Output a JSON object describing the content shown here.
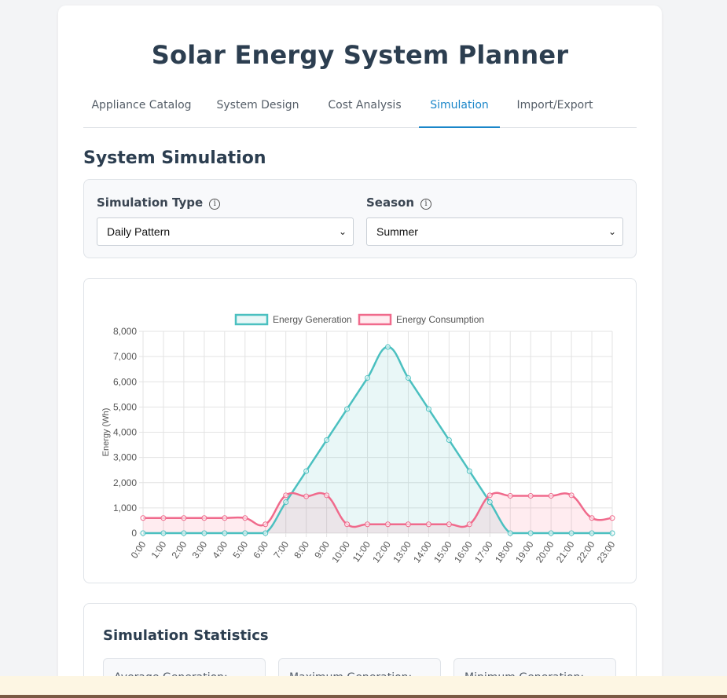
{
  "app": {
    "title": "Solar Energy System Planner"
  },
  "tabs": [
    {
      "label": "Appliance Catalog"
    },
    {
      "label": "System Design"
    },
    {
      "label": "Cost Analysis"
    },
    {
      "label": "Simulation",
      "active": true
    },
    {
      "label": "Import/Export"
    }
  ],
  "section": {
    "title": "System Simulation"
  },
  "controls": {
    "simulation_type": {
      "label": "Simulation Type",
      "value": "Daily Pattern",
      "info_icon": "info-circle-icon"
    },
    "season": {
      "label": "Season",
      "value": "Summer",
      "info_icon": "info-circle-icon"
    }
  },
  "chart_data": {
    "type": "line",
    "title": "",
    "xlabel": "",
    "ylabel": "Energy (Wh)",
    "ylim": [
      0,
      8000
    ],
    "yticks": [
      0,
      1000,
      2000,
      3000,
      4000,
      5000,
      6000,
      7000,
      8000
    ],
    "ytick_labels": [
      "0",
      "1,000",
      "2,000",
      "3,000",
      "4,000",
      "5,000",
      "6,000",
      "7,000",
      "8,000"
    ],
    "legend_position": "top",
    "grid": true,
    "categories": [
      "0:00",
      "1:00",
      "2:00",
      "3:00",
      "4:00",
      "5:00",
      "6:00",
      "7:00",
      "8:00",
      "9:00",
      "10:00",
      "11:00",
      "12:00",
      "13:00",
      "14:00",
      "15:00",
      "16:00",
      "17:00",
      "18:00",
      "19:00",
      "20:00",
      "21:00",
      "22:00",
      "23:00"
    ],
    "series": [
      {
        "name": "Energy Generation",
        "color": "#4bc0c0",
        "fill": "rgba(75,192,192,0.12)",
        "values": [
          0,
          0,
          0,
          0,
          0,
          0,
          0,
          1230,
          2460,
          3690,
          4920,
          6150,
          7380,
          6150,
          4920,
          3690,
          2460,
          1230,
          0,
          0,
          0,
          0,
          0,
          0
        ]
      },
      {
        "name": "Energy Consumption",
        "color": "#f06a8c",
        "fill": "rgba(255,99,132,0.12)",
        "values": [
          600,
          600,
          600,
          600,
          600,
          600,
          350,
          1500,
          1460,
          1500,
          350,
          350,
          350,
          350,
          350,
          350,
          350,
          1500,
          1480,
          1480,
          1480,
          1500,
          600,
          600
        ]
      }
    ]
  },
  "stats": {
    "title": "Simulation Statistics",
    "cards": [
      {
        "label": "Average Generation:"
      },
      {
        "label": "Maximum Generation:"
      },
      {
        "label": "Minimum Generation:"
      }
    ]
  }
}
